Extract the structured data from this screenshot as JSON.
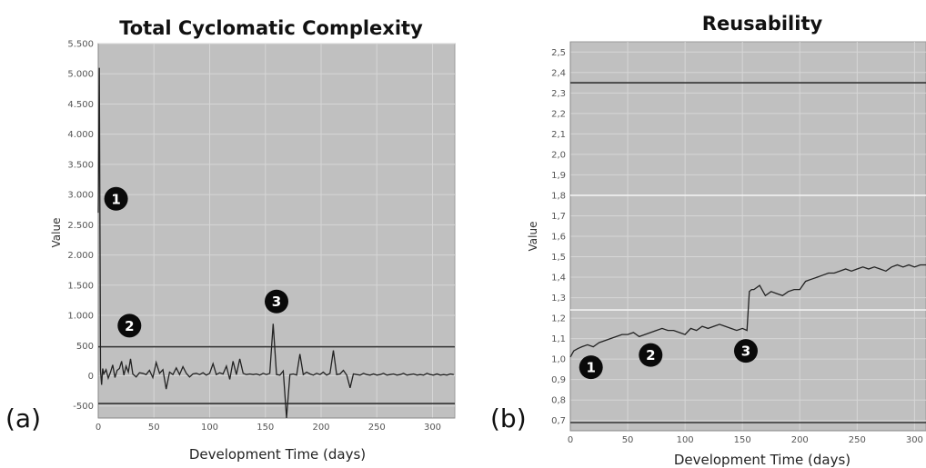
{
  "panel_labels": [
    "(a)",
    "(b)"
  ],
  "chart_data": [
    {
      "type": "line",
      "title": "Total Cyclomatic Complexity",
      "xlabel": "Development Time (days)",
      "ylabel": "Value",
      "xlim": [
        0,
        320
      ],
      "ylim": [
        -700,
        5500
      ],
      "x_ticks": [
        0,
        50,
        100,
        150,
        200,
        250,
        300
      ],
      "x_tick_labels": [
        "0",
        "50",
        "100",
        "150",
        "200",
        "250",
        "300"
      ],
      "y_ticks": [
        -500,
        0,
        500,
        1000,
        1500,
        2000,
        2500,
        3000,
        3500,
        4000,
        4500,
        5000,
        5500
      ],
      "y_tick_labels": [
        "-500",
        "0",
        "500",
        "1.000",
        "1.500",
        "2.000",
        "2.500",
        "3.000",
        "3.500",
        "4.000",
        "4.500",
        "5.000",
        "5.500"
      ],
      "grid": true,
      "background": "#c0c0c0",
      "line_color": "#222222",
      "reference_lines": [
        {
          "y": 480,
          "color": "#333333"
        },
        {
          "y": -460,
          "color": "#333333"
        }
      ],
      "series": [
        {
          "x": [
            0,
            1,
            2,
            3,
            4,
            5,
            7,
            9,
            11,
            13,
            15,
            17,
            19,
            21,
            23,
            25,
            27,
            29,
            31,
            34,
            37,
            40,
            43,
            46,
            49,
            52,
            55,
            58,
            61,
            64,
            67,
            70,
            73,
            76,
            79,
            82,
            85,
            88,
            91,
            94,
            97,
            100,
            103,
            106,
            109,
            112,
            115,
            118,
            121,
            124,
            127,
            130,
            133,
            136,
            139,
            142,
            145,
            148,
            151,
            154,
            157,
            160,
            163,
            166,
            169,
            172,
            175,
            178,
            181,
            184,
            187,
            190,
            193,
            196,
            199,
            202,
            205,
            208,
            211,
            214,
            217,
            220,
            223,
            226,
            229,
            232,
            235,
            238,
            241,
            244,
            247,
            250,
            253,
            256,
            259,
            262,
            265,
            268,
            271,
            274,
            277,
            280,
            283,
            286,
            289,
            292,
            295,
            298,
            301,
            304,
            307,
            310,
            313,
            316,
            319
          ],
          "y": [
            2700,
            5100,
            80,
            -150,
            120,
            30,
            100,
            -40,
            60,
            180,
            -30,
            90,
            120,
            240,
            10,
            160,
            60,
            280,
            30,
            -20,
            50,
            40,
            20,
            90,
            -30,
            220,
            40,
            100,
            -220,
            60,
            20,
            130,
            20,
            150,
            40,
            -20,
            30,
            40,
            20,
            50,
            10,
            40,
            200,
            20,
            50,
            30,
            160,
            -60,
            240,
            20,
            280,
            40,
            20,
            30,
            20,
            30,
            10,
            40,
            20,
            40,
            860,
            20,
            10,
            80,
            -700,
            20,
            30,
            10,
            360,
            20,
            60,
            30,
            10,
            40,
            20,
            60,
            10,
            40,
            420,
            20,
            30,
            90,
            10,
            -200,
            30,
            20,
            10,
            40,
            20,
            10,
            30,
            10,
            20,
            40,
            10,
            20,
            30,
            10,
            20,
            40,
            10,
            20,
            30,
            10,
            20,
            10,
            40,
            20,
            10,
            30,
            10,
            20,
            10,
            30,
            20
          ]
        }
      ],
      "markers": [
        {
          "label": "1",
          "x": 16,
          "y": 2930
        },
        {
          "label": "2",
          "x": 28,
          "y": 830
        },
        {
          "label": "3",
          "x": 160,
          "y": 1230
        }
      ]
    },
    {
      "type": "line",
      "title": "Reusability",
      "xlabel": "Development Time (days)",
      "ylabel": "Value",
      "xlim": [
        0,
        310
      ],
      "ylim": [
        0.65,
        2.55
      ],
      "x_ticks": [
        0,
        50,
        100,
        150,
        200,
        250,
        300
      ],
      "x_tick_labels": [
        "0",
        "50",
        "100",
        "150",
        "200",
        "250",
        "300"
      ],
      "y_ticks": [
        0.7,
        0.8,
        0.9,
        1.0,
        1.1,
        1.2,
        1.3,
        1.4,
        1.5,
        1.6,
        1.7,
        1.8,
        1.9,
        2.0,
        2.1,
        2.2,
        2.3,
        2.4,
        2.5
      ],
      "y_tick_labels": [
        "0,7",
        "0,8",
        "0,9",
        "1,0",
        "1,1",
        "1,2",
        "1,3",
        "1,4",
        "1,5",
        "1,6",
        "1,7",
        "1,8",
        "1,9",
        "2,0",
        "2,1",
        "2,2",
        "2,3",
        "2,4",
        "2,5"
      ],
      "grid": true,
      "background": "#c0c0c0",
      "line_color": "#222222",
      "reference_lines": [
        {
          "y": 2.35,
          "color": "#333333"
        },
        {
          "y": 1.8,
          "color": "#f2f2f2"
        },
        {
          "y": 1.24,
          "color": "#f2f2f2"
        },
        {
          "y": 0.69,
          "color": "#333333"
        }
      ],
      "series": [
        {
          "x": [
            0,
            3,
            6,
            10,
            15,
            20,
            25,
            30,
            35,
            40,
            45,
            50,
            55,
            60,
            65,
            70,
            75,
            80,
            85,
            90,
            95,
            100,
            105,
            110,
            115,
            120,
            125,
            130,
            135,
            140,
            145,
            150,
            154,
            156,
            158,
            160,
            165,
            170,
            175,
            180,
            185,
            190,
            195,
            200,
            205,
            210,
            215,
            220,
            225,
            230,
            235,
            240,
            245,
            250,
            255,
            260,
            265,
            270,
            275,
            280,
            285,
            290,
            295,
            300,
            305,
            310
          ],
          "y": [
            1.01,
            1.04,
            1.05,
            1.06,
            1.07,
            1.06,
            1.08,
            1.09,
            1.1,
            1.11,
            1.12,
            1.12,
            1.13,
            1.11,
            1.12,
            1.13,
            1.14,
            1.15,
            1.14,
            1.14,
            1.13,
            1.12,
            1.15,
            1.14,
            1.16,
            1.15,
            1.16,
            1.17,
            1.16,
            1.15,
            1.14,
            1.15,
            1.14,
            1.33,
            1.34,
            1.34,
            1.36,
            1.31,
            1.33,
            1.32,
            1.31,
            1.33,
            1.34,
            1.34,
            1.38,
            1.39,
            1.4,
            1.41,
            1.42,
            1.42,
            1.43,
            1.44,
            1.43,
            1.44,
            1.45,
            1.44,
            1.45,
            1.44,
            1.43,
            1.45,
            1.46,
            1.45,
            1.46,
            1.45,
            1.46,
            1.46
          ]
        }
      ],
      "markers": [
        {
          "label": "1",
          "x": 18,
          "y": 0.96
        },
        {
          "label": "2",
          "x": 70,
          "y": 1.02
        },
        {
          "label": "3",
          "x": 153,
          "y": 1.04
        }
      ]
    }
  ]
}
